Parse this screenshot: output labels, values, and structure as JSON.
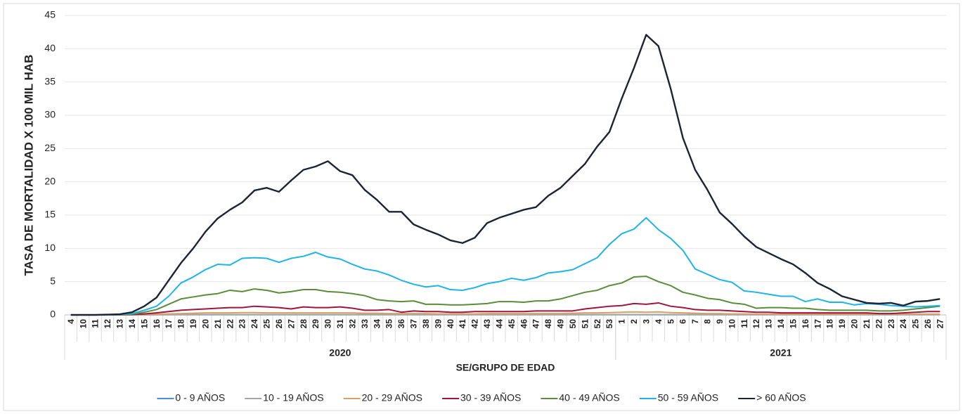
{
  "chart_data": {
    "type": "line",
    "y_label": "TASA DE MORTALIDAD X 100 MIL HAB",
    "x_label": "SE/GRUPO DE EDAD",
    "category_groups": [
      {
        "label": "2020",
        "categories": [
          "4",
          "10",
          "11",
          "12",
          "13",
          "14",
          "15",
          "16",
          "17",
          "18",
          "19",
          "20",
          "21",
          "22",
          "23",
          "24",
          "25",
          "26",
          "27",
          "28",
          "29",
          "30",
          "31",
          "32",
          "33",
          "34",
          "35",
          "36",
          "37",
          "38",
          "39",
          "40",
          "41",
          "42",
          "43",
          "44",
          "45",
          "46",
          "47",
          "48",
          "49",
          "50",
          "51",
          "52",
          "53"
        ]
      },
      {
        "label": "2021",
        "categories": [
          "1",
          "2",
          "3",
          "4",
          "5",
          "6",
          "7",
          "8",
          "9",
          "10",
          "11",
          "12",
          "13",
          "14",
          "15",
          "16",
          "17",
          "18",
          "19",
          "20",
          "21",
          "22",
          "23",
          "24",
          "25",
          "26",
          "27"
        ]
      }
    ],
    "ylim": [
      0,
      45
    ],
    "yticks": [
      0,
      5,
      10,
      15,
      20,
      25,
      30,
      35,
      40,
      45
    ],
    "grid": true,
    "legend": "bottom",
    "series": [
      {
        "name": "0 - 9 AÑOS",
        "color": "#4a90d9",
        "values": [
          0,
          0,
          0,
          0,
          0,
          0.01,
          0.01,
          0.02,
          0.02,
          0.02,
          0.02,
          0.02,
          0.02,
          0.02,
          0.02,
          0.02,
          0.02,
          0.02,
          0.02,
          0.02,
          0.02,
          0.02,
          0.02,
          0.02,
          0.02,
          0.02,
          0.02,
          0.02,
          0.02,
          0.02,
          0.02,
          0.02,
          0.02,
          0.02,
          0.02,
          0.02,
          0.02,
          0.02,
          0.02,
          0.02,
          0.02,
          0.02,
          0.02,
          0.02,
          0.02,
          0.02,
          0.02,
          0.02,
          0.02,
          0.02,
          0.02,
          0.02,
          0.02,
          0.02,
          0.02,
          0.02,
          0.02,
          0.02,
          0.02,
          0.02,
          0.02,
          0.02,
          0.02,
          0.02,
          0.02,
          0.02,
          0.02,
          0.02,
          0.02,
          0.02,
          0.02,
          0.02
        ]
      },
      {
        "name": "10 - 19 AÑOS",
        "color": "#a6a6a6",
        "values": [
          0,
          0,
          0,
          0,
          0,
          0.01,
          0.02,
          0.03,
          0.04,
          0.05,
          0.05,
          0.05,
          0.05,
          0.05,
          0.05,
          0.05,
          0.05,
          0.05,
          0.05,
          0.05,
          0.05,
          0.05,
          0.05,
          0.05,
          0.05,
          0.05,
          0.05,
          0.05,
          0.05,
          0.05,
          0.05,
          0.05,
          0.05,
          0.05,
          0.05,
          0.05,
          0.05,
          0.05,
          0.05,
          0.05,
          0.05,
          0.05,
          0.05,
          0.05,
          0.05,
          0.05,
          0.05,
          0.05,
          0.05,
          0.05,
          0.05,
          0.05,
          0.05,
          0.05,
          0.05,
          0.05,
          0.05,
          0.05,
          0.05,
          0.05,
          0.05,
          0.05,
          0.05,
          0.05,
          0.05,
          0.05,
          0.05,
          0.05,
          0.05,
          0.05,
          0.05,
          0.05
        ]
      },
      {
        "name": "20 - 29 AÑOS",
        "color": "#d9a066",
        "values": [
          0,
          0,
          0,
          0,
          0,
          0.02,
          0.05,
          0.1,
          0.15,
          0.2,
          0.25,
          0.3,
          0.3,
          0.3,
          0.35,
          0.35,
          0.3,
          0.3,
          0.3,
          0.3,
          0.3,
          0.3,
          0.3,
          0.3,
          0.25,
          0.25,
          0.2,
          0.2,
          0.2,
          0.2,
          0.15,
          0.15,
          0.15,
          0.15,
          0.2,
          0.2,
          0.2,
          0.2,
          0.2,
          0.2,
          0.2,
          0.25,
          0.3,
          0.3,
          0.35,
          0.4,
          0.45,
          0.4,
          0.45,
          0.35,
          0.3,
          0.25,
          0.2,
          0.2,
          0.15,
          0.15,
          0.1,
          0.1,
          0.1,
          0.1,
          0.1,
          0.1,
          0.1,
          0.1,
          0.1,
          0.1,
          0.1,
          0.1,
          0.1,
          0.1,
          0.1,
          0.1
        ]
      },
      {
        "name": "30 - 39 AÑOS",
        "color": "#a0153e",
        "values": [
          0,
          0,
          0,
          0,
          0.01,
          0.05,
          0.15,
          0.3,
          0.5,
          0.7,
          0.8,
          0.9,
          1.0,
          1.1,
          1.1,
          1.3,
          1.2,
          1.1,
          0.9,
          1.2,
          1.1,
          1.1,
          1.2,
          1.0,
          0.7,
          0.7,
          0.8,
          0.4,
          0.6,
          0.5,
          0.5,
          0.4,
          0.4,
          0.5,
          0.5,
          0.5,
          0.5,
          0.5,
          0.6,
          0.6,
          0.6,
          0.6,
          0.9,
          1.1,
          1.3,
          1.4,
          1.7,
          1.6,
          1.8,
          1.3,
          1.1,
          0.8,
          0.7,
          0.7,
          0.6,
          0.5,
          0.4,
          0.4,
          0.3,
          0.3,
          0.3,
          0.3,
          0.3,
          0.3,
          0.3,
          0.3,
          0.2,
          0.2,
          0.3,
          0.4,
          0.5,
          0.5
        ]
      },
      {
        "name": "40 - 49 AÑOS",
        "color": "#5b8c3a",
        "values": [
          0,
          0,
          0,
          0,
          0.03,
          0.1,
          0.4,
          0.8,
          1.6,
          2.4,
          2.7,
          3.0,
          3.2,
          3.7,
          3.5,
          3.9,
          3.7,
          3.3,
          3.5,
          3.8,
          3.8,
          3.5,
          3.4,
          3.2,
          2.9,
          2.3,
          2.1,
          2.0,
          2.1,
          1.6,
          1.6,
          1.5,
          1.5,
          1.6,
          1.7,
          2.0,
          2.0,
          1.9,
          2.1,
          2.1,
          2.4,
          2.9,
          3.4,
          3.7,
          4.4,
          4.8,
          5.7,
          5.8,
          5.0,
          4.4,
          3.4,
          3.0,
          2.5,
          2.3,
          1.8,
          1.6,
          1.0,
          1.1,
          1.1,
          1.0,
          1.0,
          0.8,
          0.7,
          0.7,
          0.7,
          0.7,
          0.6,
          0.6,
          0.7,
          0.9,
          1.1,
          1.3
        ]
      },
      {
        "name": "50 - 59 AÑOS",
        "color": "#1eb4e8",
        "values": [
          0,
          0,
          0,
          0,
          0.05,
          0.2,
          0.7,
          1.3,
          2.8,
          4.8,
          5.7,
          6.8,
          7.6,
          7.5,
          8.5,
          8.6,
          8.5,
          7.9,
          8.5,
          8.8,
          9.4,
          8.7,
          8.4,
          7.6,
          6.9,
          6.6,
          6.0,
          5.2,
          4.6,
          4.2,
          4.4,
          3.8,
          3.7,
          4.1,
          4.7,
          5.0,
          5.5,
          5.2,
          5.6,
          6.3,
          6.5,
          6.8,
          7.7,
          8.6,
          10.6,
          12.2,
          12.9,
          14.6,
          12.8,
          11.5,
          9.7,
          6.9,
          6.1,
          5.3,
          4.9,
          3.6,
          3.4,
          3.1,
          2.8,
          2.8,
          2.0,
          2.4,
          1.9,
          1.9,
          1.5,
          1.7,
          1.6,
          1.4,
          1.3,
          1.2,
          1.3,
          1.4
        ]
      },
      {
        "name": "> 60 AÑOS",
        "color": "#1c2333",
        "values": [
          0,
          0,
          0,
          0.05,
          0.1,
          0.4,
          1.3,
          2.6,
          5.2,
          7.8,
          10,
          12.5,
          14.5,
          15.8,
          16.9,
          18.7,
          19.1,
          18.5,
          20.2,
          21.8,
          22.3,
          23.1,
          21.6,
          21.0,
          18.8,
          17.3,
          15.5,
          15.5,
          13.6,
          12.8,
          12.1,
          11.2,
          10.8,
          11.6,
          13.8,
          14.6,
          15.2,
          15.8,
          16.2,
          17.9,
          19.1,
          20.9,
          22.7,
          25.3,
          27.5,
          32.5,
          37.1,
          42.1,
          40.4,
          34,
          26.6,
          21.8,
          18.8,
          15.4,
          13.7,
          11.8,
          10.2,
          9.3,
          8.4,
          7.6,
          6.3,
          4.8,
          3.9,
          2.8,
          2.3,
          1.8,
          1.7,
          1.8,
          1.4,
          2.0,
          2.1,
          2.4
        ]
      }
    ]
  }
}
